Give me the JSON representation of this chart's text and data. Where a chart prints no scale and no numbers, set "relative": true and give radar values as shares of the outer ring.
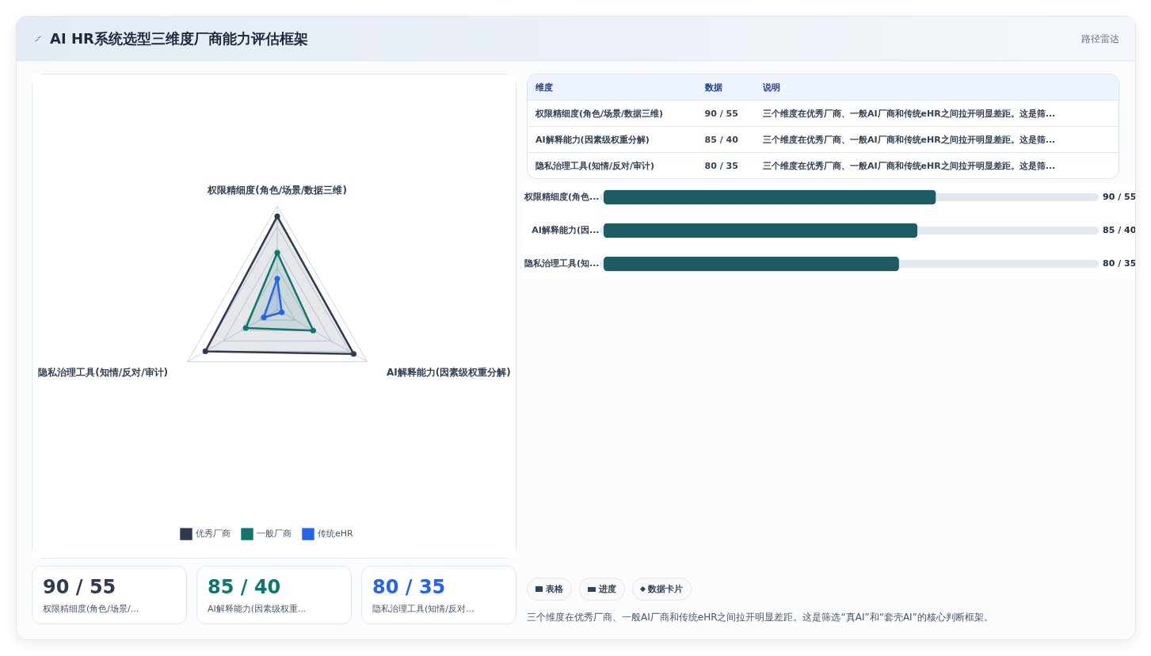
{
  "chart_data": [
    {
      "type": "radar",
      "title": "AI HR系统选型三维度厂商能力评估框架",
      "annotations": [
        "路径雷达",
        "三个维度在优秀厂商、一般AI厂商和传统eHR之间拉开明显差距。这是筛选“真AI”和“套壳AI”的核心判断框架。"
      ],
      "categories": [
        "权限精细度(角色/场景/数据三维)",
        "AI解释能力(因素级权重分解)",
        "隐私治理工具(知情/反对/审计)"
      ],
      "relative": true,
      "grid": true,
      "legend": "bottom",
      "marker": "circle",
      "series": [
        {
          "name": "优秀厂商",
          "color": "#2d3a4f",
          "values": [
            0.9,
            0.85,
            0.8
          ]
        },
        {
          "name": "一般厂商",
          "color": "#0f766e",
          "values": [
            0.55,
            0.4,
            0.35
          ]
        },
        {
          "name": "传统eHR",
          "color": "#2563eb",
          "values": [
            0.3,
            0.05,
            0.15
          ]
        }
      ]
    },
    {
      "type": "other",
      "categories": [
        "权限精细度(角色/场景/数据三维)",
        "AI解释能力(因素级权重分解)",
        "隐私治理工具(知情/反对/审计)"
      ],
      "value_labels": [
        "90 / 55",
        "85 / 40",
        "80 / 35"
      ],
      "annotations": [
        "维度",
        "数据",
        "说明",
        "三个维度在优秀厂商、一般AI厂商和传统eHR之间拉开明显差距。这是筛...",
        "三个维度在优秀厂商、一般AI厂商和传统eHR之间拉开明显差距。这是筛...",
        "三个维度在优秀厂商、一般AI厂商和传统eHR之间拉开明显差距。这是筛..."
      ]
    },
    {
      "type": "bar",
      "orientation": "horizontal",
      "categories": [
        "权限精细度(角色...",
        "AI解释能力(因...",
        "隐私治理工具(知..."
      ],
      "values": [
        90,
        85,
        80
      ],
      "xlim": [
        0,
        133
      ],
      "tick_labels": "y",
      "color": "#1c5c62",
      "value_labels": [
        "90 / 55",
        "85 / 40",
        "80 / 35"
      ]
    },
    {
      "type": "other",
      "categories": [
        "权限精细度(角色/场景/...",
        "AI解释能力(因素级权重...",
        "隐私治理工具(知情/反对..."
      ],
      "value_labels": [
        "90 / 55",
        "85 / 40",
        "80 / 35"
      ]
    },
    {
      "type": "other",
      "annotations": [
        "表格",
        "进度",
        "数据卡片"
      ]
    }
  ]
}
